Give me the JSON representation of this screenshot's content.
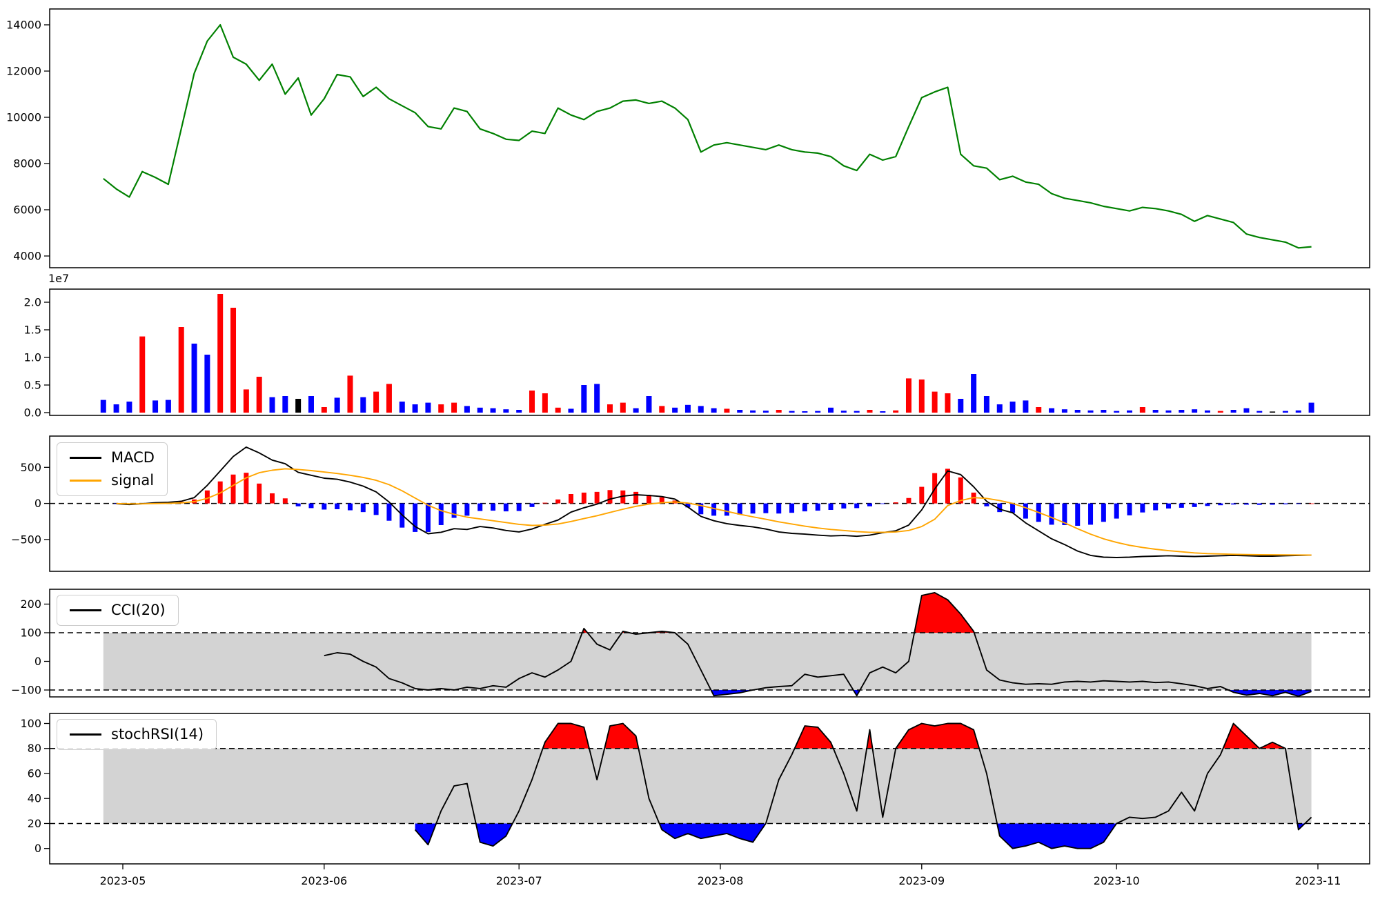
{
  "chart_data": {
    "type": "line",
    "description_title": "",
    "n": 94,
    "x_start_date": "2023-04-28",
    "x_step_days": 2,
    "x_start_day_offset": -3,
    "axes": {
      "x_ticks": [
        "2023-05",
        "2023-06",
        "2023-07",
        "2023-08",
        "2023-09",
        "2023-10",
        "2023-11"
      ],
      "volume_offset_label": "1e7"
    },
    "colors": {
      "price": "green",
      "macd": "#000000",
      "signal": "orange",
      "hist_pos": "red",
      "hist_neg": "blue",
      "band": "#d3d3d3",
      "fill_hi": "red",
      "fill_lo": "blue",
      "bar_map": {
        "R": "red",
        "B": "blue",
        "K": "black"
      }
    },
    "panels": {
      "price": {
        "type": "line",
        "yticks": {
          "labels": [
            "4000",
            "6000",
            "8000",
            "10000",
            "12000",
            "14000"
          ],
          "values": [
            4000,
            6000,
            8000,
            10000,
            12000,
            14000
          ]
        },
        "values": [
          7350,
          6900,
          6550,
          7650,
          7400,
          7100,
          9500,
          11900,
          13300,
          14000,
          12600,
          12300,
          11600,
          12300,
          11000,
          11700,
          10100,
          10800,
          11850,
          11750,
          10900,
          11300,
          10800,
          10500,
          10200,
          9600,
          9500,
          10400,
          10250,
          9500,
          9300,
          9050,
          9000,
          9400,
          9300,
          10400,
          10100,
          9900,
          10250,
          10400,
          10700,
          10750,
          10600,
          10700,
          10400,
          9900,
          8500,
          8800,
          8900,
          8800,
          8700,
          8600,
          8800,
          8600,
          8500,
          8450,
          8300,
          7900,
          7700,
          8400,
          8150,
          8300,
          9600,
          10850,
          11100,
          11300,
          8400,
          7900,
          7800,
          7300,
          7450,
          7200,
          7100,
          6700,
          6500,
          6400,
          6300,
          6150,
          6050,
          5950,
          6100,
          6050,
          5950,
          5800,
          5500,
          5750,
          5600,
          5450,
          4950,
          4800,
          4700,
          4600,
          4350,
          4400
        ]
      },
      "volume": {
        "type": "bar",
        "unit": 1000000,
        "yticks": {
          "labels": [
            "0.0",
            "0.5",
            "1.0",
            "1.5",
            "2.0"
          ],
          "values": [
            0,
            5,
            10,
            15,
            20
          ]
        },
        "values": [
          2.3,
          1.5,
          2.0,
          13.8,
          2.2,
          2.3,
          15.5,
          12.5,
          10.5,
          21.5,
          19.0,
          4.2,
          6.5,
          2.8,
          3.0,
          2.5,
          3.0,
          1.0,
          2.7,
          6.7,
          2.8,
          3.8,
          5.2,
          2.0,
          1.5,
          1.8,
          1.5,
          1.8,
          1.2,
          0.9,
          0.8,
          0.6,
          0.5,
          4.0,
          3.5,
          0.9,
          0.7,
          5.0,
          5.2,
          1.5,
          1.8,
          0.8,
          3.0,
          1.2,
          0.9,
          1.4,
          1.2,
          0.8,
          0.7,
          0.5,
          0.4,
          0.35,
          0.5,
          0.3,
          0.25,
          0.3,
          0.9,
          0.35,
          0.3,
          0.5,
          0.25,
          0.4,
          6.2,
          6.0,
          3.8,
          3.5,
          2.5,
          7.0,
          3.0,
          1.5,
          2.0,
          2.2,
          1.0,
          0.8,
          0.6,
          0.5,
          0.4,
          0.5,
          0.3,
          0.4,
          1.0,
          0.5,
          0.4,
          0.5,
          0.6,
          0.4,
          0.3,
          0.5,
          0.8,
          0.3,
          0.2,
          0.3,
          0.4,
          1.8
        ],
        "bar_colors": [
          "B",
          "B",
          "B",
          "R",
          "B",
          "B",
          "R",
          "B",
          "B",
          "R",
          "R",
          "R",
          "R",
          "B",
          "B",
          "K",
          "B",
          "R",
          "B",
          "R",
          "B",
          "R",
          "R",
          "B",
          "B",
          "B",
          "R",
          "R",
          "B",
          "B",
          "B",
          "B",
          "B",
          "R",
          "R",
          "R",
          "B",
          "B",
          "B",
          "R",
          "R",
          "B",
          "B",
          "R",
          "B",
          "B",
          "B",
          "B",
          "R",
          "B",
          "B",
          "B",
          "R",
          "B",
          "B",
          "B",
          "B",
          "B",
          "B",
          "R",
          "B",
          "R",
          "R",
          "R",
          "R",
          "R",
          "B",
          "B",
          "B",
          "B",
          "B",
          "B",
          "R",
          "B",
          "B",
          "B",
          "B",
          "B",
          "B",
          "B",
          "R",
          "B",
          "B",
          "B",
          "B",
          "B",
          "R",
          "B",
          "B",
          "B",
          "K",
          "B",
          "B",
          "B"
        ]
      },
      "macd": {
        "type": "line+hist",
        "legend": {
          "macd": "MACD",
          "signal": "signal"
        },
        "yticks": {
          "labels": [
            "−500",
            "0",
            "500"
          ],
          "values": [
            -500,
            0,
            500
          ]
        },
        "macd": [
          null,
          -5,
          -15,
          -5,
          10,
          15,
          30,
          80,
          250,
          450,
          650,
          780,
          700,
          600,
          550,
          430,
          390,
          350,
          335,
          295,
          240,
          160,
          20,
          -160,
          -320,
          -420,
          -400,
          -350,
          -360,
          -320,
          -340,
          -375,
          -395,
          -355,
          -290,
          -230,
          -120,
          -60,
          -10,
          60,
          100,
          120,
          110,
          95,
          60,
          -50,
          -180,
          -240,
          -280,
          -305,
          -325,
          -355,
          -395,
          -415,
          -425,
          -440,
          -450,
          -445,
          -455,
          -440,
          -405,
          -380,
          -300,
          -90,
          200,
          450,
          400,
          230,
          30,
          -80,
          -130,
          -270,
          -380,
          -490,
          -570,
          -660,
          -720,
          -745,
          -750,
          -745,
          -735,
          -730,
          -725,
          -730,
          -735,
          -730,
          -725,
          -720,
          -725,
          -730,
          -730,
          -725,
          -720,
          -715
        ],
        "signal": [
          null,
          -2,
          -6,
          -6,
          -2,
          2,
          8,
          25,
          70,
          145,
          250,
          355,
          425,
          460,
          480,
          470,
          455,
          435,
          415,
          390,
          360,
          320,
          260,
          175,
          75,
          -25,
          -100,
          -150,
          -190,
          -215,
          -240,
          -265,
          -290,
          -305,
          -300,
          -285,
          -250,
          -210,
          -170,
          -125,
          -80,
          -40,
          -10,
          10,
          20,
          5,
          -30,
          -70,
          -110,
          -150,
          -185,
          -220,
          -255,
          -285,
          -315,
          -340,
          -360,
          -375,
          -390,
          -400,
          -400,
          -395,
          -375,
          -320,
          -220,
          -30,
          40,
          80,
          70,
          40,
          0,
          -60,
          -125,
          -195,
          -270,
          -350,
          -425,
          -490,
          -540,
          -580,
          -610,
          -635,
          -655,
          -670,
          -685,
          -695,
          -700,
          -705,
          -708,
          -710,
          -712,
          -713,
          -714,
          -715
        ]
      },
      "cci": {
        "type": "line",
        "legend": "CCI(20)",
        "band": [
          -100,
          100
        ],
        "yticks": {
          "labels": [
            "−100",
            "0",
            "100",
            "200"
          ],
          "values": [
            -100,
            0,
            100,
            200
          ]
        },
        "values": [
          null,
          null,
          null,
          null,
          null,
          null,
          null,
          null,
          null,
          null,
          null,
          null,
          null,
          null,
          null,
          null,
          null,
          20,
          30,
          25,
          0,
          -20,
          -60,
          -75,
          -95,
          -100,
          -95,
          -100,
          -90,
          -95,
          -85,
          -90,
          -60,
          -40,
          -55,
          -30,
          0,
          115,
          60,
          40,
          105,
          95,
          100,
          105,
          100,
          60,
          -30,
          -120,
          -115,
          -110,
          -100,
          -92,
          -88,
          -85,
          -45,
          -55,
          -50,
          -45,
          -120,
          -40,
          -20,
          -40,
          0,
          230,
          240,
          215,
          165,
          105,
          -30,
          -65,
          -75,
          -80,
          -78,
          -80,
          -72,
          -70,
          -72,
          -68,
          -70,
          -72,
          -70,
          -74,
          -72,
          -78,
          -85,
          -95,
          -88,
          -108,
          -118,
          -112,
          -120,
          -108,
          -122,
          -105
        ]
      },
      "stochrsi": {
        "type": "line",
        "legend": "stochRSI(14)",
        "band": [
          20,
          80
        ],
        "yticks": {
          "labels": [
            "0",
            "20",
            "40",
            "60",
            "80",
            "100"
          ],
          "values": [
            0,
            20,
            40,
            60,
            80,
            100
          ]
        },
        "values": [
          null,
          null,
          null,
          null,
          null,
          null,
          null,
          null,
          null,
          null,
          null,
          null,
          null,
          null,
          null,
          null,
          null,
          null,
          null,
          null,
          null,
          null,
          null,
          null,
          15,
          3,
          30,
          50,
          52,
          5,
          2,
          10,
          30,
          55,
          85,
          100,
          100,
          97,
          55,
          98,
          100,
          90,
          40,
          15,
          8,
          12,
          8,
          10,
          12,
          8,
          5,
          20,
          55,
          75,
          98,
          97,
          85,
          60,
          30,
          95,
          25,
          80,
          95,
          100,
          98,
          100,
          100,
          95,
          60,
          10,
          0,
          2,
          5,
          0,
          2,
          0,
          0,
          5,
          20,
          25,
          24,
          25,
          30,
          45,
          30,
          60,
          75,
          100,
          90,
          80,
          85,
          80,
          15,
          25
        ]
      }
    }
  }
}
